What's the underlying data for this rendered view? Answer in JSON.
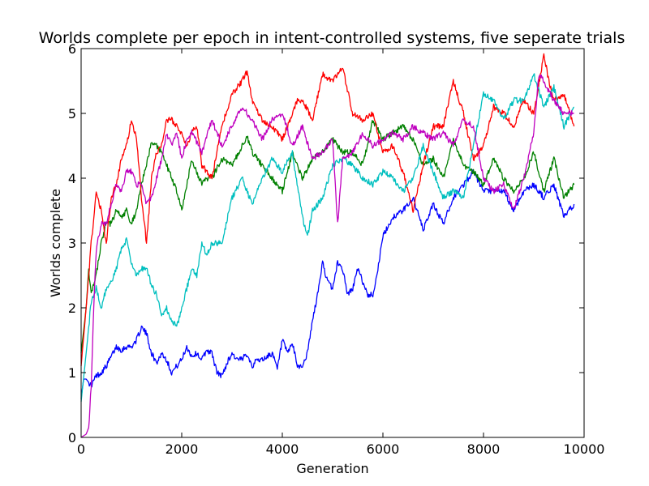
{
  "chart_data": {
    "type": "line",
    "title": "Worlds complete per epoch in intent-controlled systems, five seperate trials",
    "xlabel": "Generation",
    "ylabel": "Worlds complete",
    "xlim": [
      0,
      10000
    ],
    "ylim": [
      0,
      6
    ],
    "xticks": [
      "0",
      "2000",
      "4000",
      "6000",
      "8000",
      "10000"
    ],
    "yticks": [
      "0",
      "1",
      "2",
      "3",
      "4",
      "5",
      "6"
    ],
    "grid": false,
    "legend": "none",
    "series": [
      {
        "color": "#0000ff",
        "x": [
          0,
          50,
          100,
          200,
          300,
          400,
          500,
          600,
          700,
          800,
          900,
          1000,
          1100,
          1200,
          1300,
          1400,
          1500,
          1600,
          1700,
          1800,
          1900,
          2000,
          2100,
          2200,
          2300,
          2400,
          2500,
          2600,
          2700,
          2800,
          2900,
          3000,
          3100,
          3200,
          3300,
          3400,
          3500,
          3600,
          3700,
          3800,
          3900,
          4000,
          4100,
          4200,
          4300,
          4400,
          4500,
          4600,
          4700,
          4800,
          4900,
          5000,
          5100,
          5200,
          5300,
          5400,
          5500,
          5600,
          5700,
          5800,
          5900,
          6000,
          6200,
          6400,
          6600,
          6800,
          7000,
          7200,
          7400,
          7600,
          7800,
          8000,
          8200,
          8400,
          8600,
          8800,
          9000,
          9200,
          9400,
          9600,
          9800
        ],
        "y": [
          0.6,
          0.9,
          0.9,
          0.8,
          0.95,
          1.0,
          1.1,
          1.25,
          1.4,
          1.35,
          1.4,
          1.4,
          1.5,
          1.7,
          1.6,
          1.3,
          1.15,
          1.3,
          1.2,
          1.0,
          1.1,
          1.2,
          1.4,
          1.25,
          1.3,
          1.2,
          1.35,
          1.3,
          1.0,
          0.95,
          1.15,
          1.3,
          1.2,
          1.2,
          1.3,
          1.1,
          1.2,
          1.2,
          1.25,
          1.3,
          1.05,
          1.5,
          1.3,
          1.45,
          1.1,
          1.1,
          1.3,
          1.8,
          2.2,
          2.7,
          2.4,
          2.3,
          2.7,
          2.6,
          2.2,
          2.3,
          2.6,
          2.4,
          2.2,
          2.2,
          2.6,
          3.1,
          3.4,
          3.5,
          3.7,
          3.2,
          3.6,
          3.3,
          3.7,
          3.9,
          4.1,
          3.8,
          3.8,
          3.8,
          3.5,
          3.8,
          3.9,
          3.7,
          3.9,
          3.4,
          3.6
        ]
      },
      {
        "color": "#008000",
        "x": [
          0,
          100,
          150,
          200,
          300,
          400,
          500,
          600,
          700,
          800,
          900,
          1000,
          1100,
          1200,
          1300,
          1400,
          1500,
          1600,
          1700,
          1800,
          1900,
          2000,
          2100,
          2200,
          2300,
          2400,
          2500,
          2600,
          2800,
          3000,
          3200,
          3300,
          3400,
          3600,
          3800,
          4000,
          4200,
          4400,
          4600,
          4800,
          5000,
          5200,
          5400,
          5600,
          5800,
          6000,
          6200,
          6400,
          6600,
          6800,
          7000,
          7200,
          7400,
          7600,
          7800,
          8000,
          8200,
          8400,
          8600,
          8800,
          9000,
          9200,
          9400,
          9600,
          9800
        ],
        "y": [
          1.3,
          2.0,
          2.6,
          2.2,
          2.5,
          3.0,
          3.3,
          3.3,
          3.5,
          3.4,
          3.5,
          3.3,
          3.5,
          3.9,
          4.2,
          4.55,
          4.5,
          4.4,
          4.2,
          4.0,
          3.8,
          3.5,
          3.9,
          4.3,
          4.1,
          3.9,
          4.0,
          4.0,
          4.3,
          4.2,
          4.5,
          4.65,
          4.4,
          4.2,
          4.0,
          3.8,
          4.4,
          4.0,
          4.3,
          4.4,
          4.6,
          4.4,
          4.4,
          4.2,
          4.9,
          4.6,
          4.7,
          4.8,
          4.6,
          4.2,
          4.3,
          4.0,
          4.6,
          4.2,
          4.1,
          3.9,
          4.3,
          4.0,
          3.8,
          4.0,
          4.4,
          3.8,
          4.3,
          3.7,
          3.9
        ]
      },
      {
        "color": "#ff0000",
        "x": [
          0,
          100,
          200,
          300,
          400,
          500,
          600,
          700,
          800,
          900,
          1000,
          1100,
          1200,
          1300,
          1400,
          1500,
          1600,
          1700,
          1800,
          1900,
          2000,
          2100,
          2200,
          2300,
          2400,
          2600,
          2800,
          3000,
          3200,
          3300,
          3400,
          3600,
          3800,
          4000,
          4200,
          4300,
          4400,
          4600,
          4800,
          5000,
          5200,
          5400,
          5600,
          5800,
          6000,
          6200,
          6400,
          6600,
          6800,
          7000,
          7200,
          7400,
          7600,
          7800,
          8000,
          8200,
          8400,
          8600,
          8800,
          9000,
          9200,
          9300,
          9400,
          9600,
          9800
        ],
        "y": [
          1.1,
          2.0,
          3.0,
          3.75,
          3.5,
          3.0,
          3.7,
          3.9,
          4.3,
          4.5,
          4.9,
          4.6,
          3.7,
          3.0,
          4.0,
          4.4,
          4.5,
          4.9,
          4.9,
          4.8,
          4.7,
          4.5,
          4.7,
          4.8,
          4.2,
          4.0,
          4.8,
          5.3,
          5.5,
          5.65,
          5.2,
          4.9,
          4.8,
          4.6,
          5.0,
          5.2,
          5.2,
          4.9,
          5.6,
          5.5,
          5.7,
          5.0,
          4.9,
          5.0,
          4.4,
          4.5,
          4.1,
          3.5,
          4.2,
          4.8,
          4.8,
          5.5,
          5.0,
          4.3,
          4.5,
          5.1,
          5.0,
          4.8,
          5.2,
          5.0,
          5.9,
          5.5,
          5.2,
          5.3,
          4.8
        ]
      },
      {
        "color": "#00bfbf",
        "x": [
          0,
          100,
          200,
          300,
          400,
          500,
          600,
          700,
          800,
          900,
          1000,
          1100,
          1200,
          1300,
          1400,
          1500,
          1600,
          1700,
          1800,
          1900,
          2000,
          2100,
          2200,
          2300,
          2400,
          2500,
          2600,
          2800,
          3000,
          3200,
          3400,
          3600,
          3800,
          4000,
          4200,
          4400,
          4500,
          4600,
          4800,
          5000,
          5200,
          5400,
          5600,
          5800,
          6000,
          6200,
          6400,
          6600,
          6800,
          7000,
          7200,
          7400,
          7600,
          7800,
          8000,
          8200,
          8400,
          8600,
          8800,
          9000,
          9200,
          9400,
          9600,
          9800
        ],
        "y": [
          0.55,
          1.3,
          2.1,
          2.3,
          2.0,
          2.3,
          2.4,
          2.6,
          2.9,
          3.05,
          2.7,
          2.5,
          2.6,
          2.6,
          2.35,
          2.2,
          1.9,
          2.0,
          1.8,
          1.7,
          2.0,
          2.3,
          2.6,
          2.5,
          3.0,
          2.8,
          3.0,
          3.0,
          3.7,
          4.0,
          3.6,
          4.0,
          4.3,
          4.1,
          4.4,
          3.4,
          3.1,
          3.5,
          3.7,
          4.2,
          4.3,
          4.2,
          4.0,
          3.9,
          4.1,
          4.0,
          3.8,
          4.0,
          4.5,
          4.1,
          3.7,
          3.8,
          3.7,
          4.5,
          5.3,
          5.2,
          4.9,
          5.2,
          5.2,
          5.6,
          5.1,
          5.4,
          4.8,
          5.1
        ]
      },
      {
        "color": "#bf00bf",
        "x": [
          0,
          100,
          150,
          200,
          250,
          300,
          400,
          500,
          600,
          700,
          800,
          900,
          1000,
          1100,
          1200,
          1300,
          1400,
          1500,
          1600,
          1700,
          1800,
          1900,
          2000,
          2100,
          2200,
          2400,
          2600,
          2800,
          3000,
          3200,
          3400,
          3600,
          3800,
          4000,
          4200,
          4400,
          4600,
          4800,
          5000,
          5100,
          5200,
          5400,
          5600,
          5800,
          6000,
          6200,
          6400,
          6600,
          6800,
          7000,
          7200,
          7400,
          7600,
          7800,
          8000,
          8200,
          8400,
          8600,
          8800,
          9000,
          9100,
          9200,
          9400,
          9600,
          9800
        ],
        "y": [
          0.0,
          0.05,
          0.15,
          0.8,
          2.0,
          2.9,
          3.3,
          3.3,
          3.6,
          3.9,
          3.8,
          4.1,
          4.1,
          3.9,
          3.9,
          3.6,
          3.7,
          4.0,
          4.3,
          4.7,
          4.5,
          4.7,
          4.3,
          4.6,
          4.7,
          4.4,
          4.9,
          4.5,
          4.8,
          5.1,
          4.9,
          4.6,
          4.9,
          5.0,
          4.5,
          4.8,
          4.3,
          4.4,
          4.6,
          3.3,
          4.3,
          4.4,
          4.7,
          4.5,
          4.6,
          4.7,
          4.6,
          4.8,
          4.7,
          4.6,
          4.7,
          4.5,
          4.9,
          4.8,
          4.0,
          3.8,
          3.9,
          3.5,
          4.0,
          4.7,
          5.6,
          5.5,
          5.2,
          5.0,
          5.0
        ]
      }
    ]
  }
}
